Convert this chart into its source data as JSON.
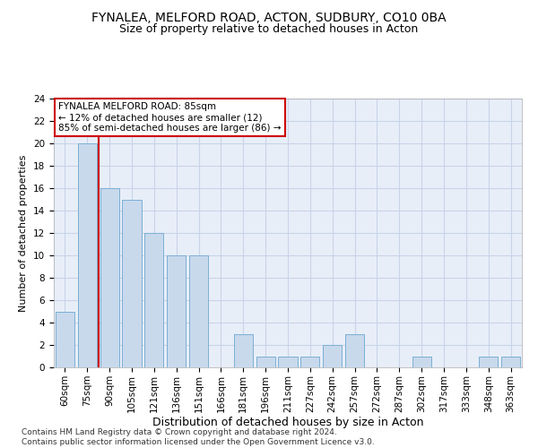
{
  "title_line1": "FYNALEA, MELFORD ROAD, ACTON, SUDBURY, CO10 0BA",
  "title_line2": "Size of property relative to detached houses in Acton",
  "xlabel": "Distribution of detached houses by size in Acton",
  "ylabel": "Number of detached properties",
  "categories": [
    "60sqm",
    "75sqm",
    "90sqm",
    "105sqm",
    "121sqm",
    "136sqm",
    "151sqm",
    "166sqm",
    "181sqm",
    "196sqm",
    "211sqm",
    "227sqm",
    "242sqm",
    "257sqm",
    "272sqm",
    "287sqm",
    "302sqm",
    "317sqm",
    "333sqm",
    "348sqm",
    "363sqm"
  ],
  "values": [
    5,
    20,
    16,
    15,
    12,
    10,
    10,
    0,
    3,
    1,
    1,
    1,
    2,
    3,
    0,
    0,
    1,
    0,
    0,
    1,
    1
  ],
  "bar_color": "#c8d9ec",
  "bar_edge_color": "#7bafd4",
  "grid_color": "#c8d4e8",
  "background_color": "#e8eef8",
  "vline_color": "#cc0000",
  "vline_pos": 1.5,
  "annotation_text": "FYNALEA MELFORD ROAD: 85sqm\n← 12% of detached houses are smaller (12)\n85% of semi-detached houses are larger (86) →",
  "annotation_box_color": "#ffffff",
  "annotation_box_edge_color": "#cc0000",
  "ylim": [
    0,
    24
  ],
  "yticks": [
    0,
    2,
    4,
    6,
    8,
    10,
    12,
    14,
    16,
    18,
    20,
    22,
    24
  ],
  "footer": "Contains HM Land Registry data © Crown copyright and database right 2024.\nContains public sector information licensed under the Open Government Licence v3.0.",
  "footer_fontsize": 6.5,
  "title1_fontsize": 10,
  "title2_fontsize": 9,
  "xlabel_fontsize": 9,
  "ylabel_fontsize": 8,
  "tick_fontsize": 7.5,
  "ann_fontsize": 7.5
}
